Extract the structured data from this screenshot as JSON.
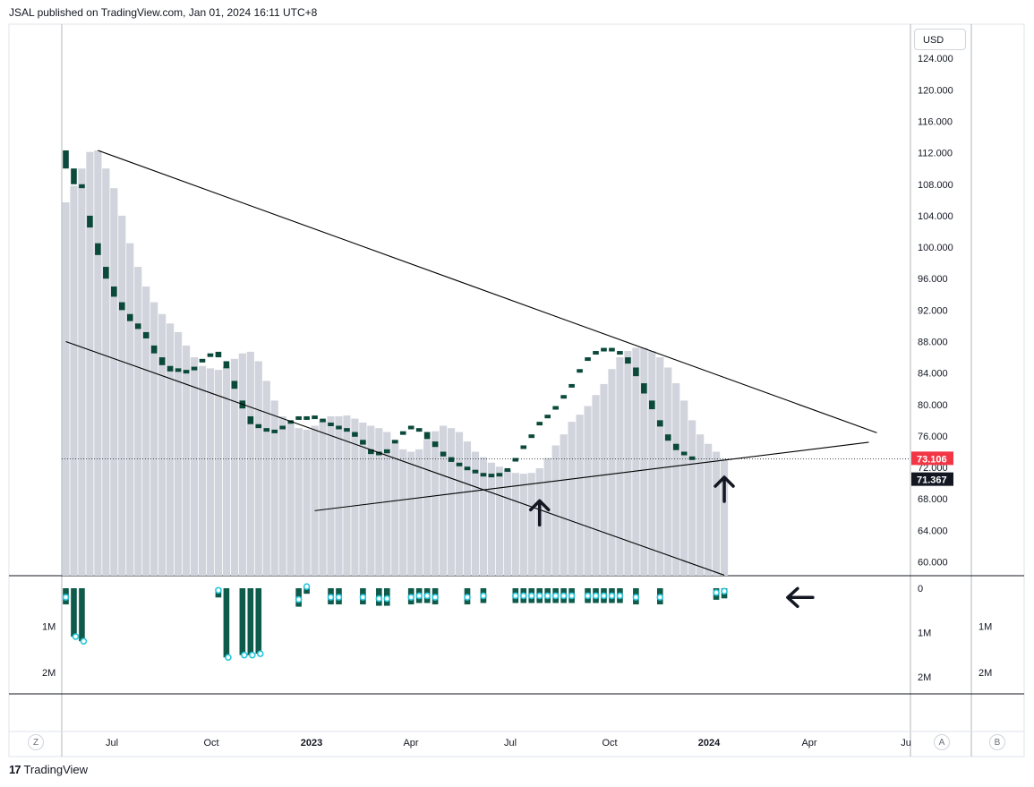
{
  "header": {
    "publish_line": "JSAL published on TradingView.com, Jan 01, 2024 16:11 UTC+8"
  },
  "currency": "USD",
  "footer": {
    "logo": "17",
    "brand": "TradingView"
  },
  "buttons": {
    "left": "Z",
    "scale_a": "A",
    "scale_b": "B"
  },
  "chart_data": {
    "type": "bar",
    "price_axis": {
      "ticks": [
        "124.000",
        "120.000",
        "116.000",
        "112.000",
        "108.000",
        "104.000",
        "100.000",
        "96.000",
        "92.000",
        "88.000",
        "84.000",
        "80.000",
        "76.000",
        "72.000",
        "68.000",
        "64.000",
        "60.000"
      ],
      "ylim": [
        58.3,
        126.5
      ]
    },
    "last_price": {
      "value": "73.106",
      "color": "#f23645",
      "y": 73.106
    },
    "line_level": {
      "value": "71.367",
      "color": "#131722",
      "y": 71.367
    },
    "time_axis": [
      "Jul",
      "Oct",
      "2023",
      "Apr",
      "Jul",
      "Oct",
      "2024",
      "Apr",
      "Ju"
    ],
    "time_axis_bold": [
      "2023",
      "2024"
    ],
    "volume_axis_left": [
      "1M",
      "2M"
    ],
    "volume_axis_right": [
      "0",
      "1M",
      "2M"
    ],
    "volume_axis_far_right": [
      "1M",
      "2M"
    ],
    "colors": {
      "area": "#d1d4dc",
      "bar": "#0b4a3a",
      "volume": "#0e5a4b",
      "marker": "#26c6da",
      "trend": "#000000"
    },
    "series": [
      {
        "values": [
          105.7,
          107.8,
          110.0,
          112.1,
          112.3,
          110.0,
          107.5,
          104.0,
          100.5,
          97.5,
          95.0,
          93.0,
          91.5,
          90.3,
          89.2,
          87.5,
          86.0,
          84.9,
          84.6,
          84.4,
          84.8,
          85.8,
          86.5,
          86.7,
          85.5,
          83.0,
          80.5,
          78.5,
          77.5,
          77.0,
          76.8,
          77.3,
          78.0,
          78.5,
          78.5,
          78.6,
          78.2,
          77.7,
          77.3,
          77.0,
          76.5,
          75.5,
          74.3,
          74.0,
          74.3,
          75.5,
          76.6,
          77.3,
          77.0,
          76.5,
          75.3,
          74.0,
          73.3,
          72.6,
          72.1,
          71.7,
          71.3,
          71.2,
          71.3,
          71.9,
          73.2,
          74.8,
          76.2,
          77.8,
          78.7,
          79.8,
          81.2,
          82.6,
          84.5,
          86.0,
          86.8,
          87.2,
          87.2,
          86.8,
          86.0,
          84.7,
          82.7,
          80.5,
          78.0,
          76.2,
          75.0,
          74.0,
          73.1
        ],
        "bar_ranges": [
          [
            112.3,
            110.0
          ],
          [
            110.0,
            108.0
          ],
          [
            108.0,
            107.5
          ],
          [
            104.0,
            102.5
          ],
          [
            100.5,
            99.0
          ],
          [
            97.5,
            96.0
          ],
          [
            95.0,
            93.7
          ],
          [
            93.0,
            92.0
          ],
          [
            91.5,
            90.6
          ],
          [
            90.3,
            89.6
          ],
          [
            89.2,
            88.4
          ],
          [
            87.5,
            86.5
          ],
          [
            86.0,
            85.0
          ],
          [
            84.9,
            84.2
          ],
          [
            84.6,
            84.2
          ],
          [
            84.4,
            84.3
          ],
          [
            84.8,
            84.6
          ],
          [
            85.8,
            85.5
          ],
          [
            86.5,
            86.3
          ],
          [
            86.7,
            86.0
          ],
          [
            85.5,
            84.6
          ],
          [
            83.0,
            82.0
          ],
          [
            80.5,
            79.5
          ],
          [
            78.5,
            77.5
          ],
          [
            77.5,
            77.0
          ],
          [
            77.0,
            76.8
          ],
          [
            76.8,
            76.7
          ],
          [
            77.3,
            77.2
          ],
          [
            78.0,
            77.9
          ],
          [
            78.5,
            78.4
          ],
          [
            78.5,
            78.4
          ],
          [
            78.6,
            78.5
          ],
          [
            78.2,
            78.1
          ],
          [
            77.7,
            77.6
          ],
          [
            77.3,
            77.2
          ],
          [
            77.0,
            76.9
          ],
          [
            76.5,
            75.9
          ],
          [
            75.5,
            74.9
          ],
          [
            74.3,
            73.7
          ],
          [
            74.0,
            73.8
          ],
          [
            74.3,
            73.8
          ],
          [
            75.5,
            75.4
          ],
          [
            76.6,
            76.5
          ],
          [
            77.3,
            77.2
          ],
          [
            77.0,
            76.9
          ],
          [
            76.5,
            75.6
          ],
          [
            75.3,
            74.6
          ],
          [
            74.0,
            73.4
          ],
          [
            73.3,
            72.7
          ],
          [
            72.6,
            72.3
          ],
          [
            72.1,
            71.9
          ],
          [
            71.7,
            71.6
          ],
          [
            71.3,
            71.2
          ],
          [
            71.2,
            71.1
          ],
          [
            71.3,
            71.2
          ],
          [
            71.9,
            71.8
          ],
          [
            73.2,
            73.1
          ],
          [
            74.8,
            74.7
          ],
          [
            76.2,
            76.1
          ],
          [
            77.8,
            77.7
          ],
          [
            78.7,
            78.6
          ],
          [
            79.8,
            79.7
          ],
          [
            81.2,
            81.1
          ],
          [
            82.6,
            82.5
          ],
          [
            84.5,
            84.4
          ],
          [
            86.0,
            85.9
          ],
          [
            86.8,
            86.7
          ],
          [
            87.2,
            87.1
          ],
          [
            87.2,
            87.0
          ],
          [
            86.8,
            86.5
          ],
          [
            86.0,
            85.2
          ],
          [
            84.7,
            83.6
          ],
          [
            82.7,
            81.4
          ],
          [
            80.5,
            79.4
          ],
          [
            78.0,
            77.2
          ],
          [
            76.2,
            75.4
          ],
          [
            75.0,
            74.2
          ],
          [
            74.0,
            73.6
          ],
          [
            73.4,
            73.106
          ]
        ]
      }
    ],
    "volume": [
      {
        "i": 0,
        "v": 0.35,
        "m": true
      },
      {
        "i": 1,
        "v": 1.05,
        "m": true
      },
      {
        "i": 2,
        "v": 1.15,
        "m": true
      },
      {
        "i": 19,
        "v": 0.2,
        "m": true
      },
      {
        "i": 20,
        "v": 1.5,
        "m": true
      },
      {
        "i": 22,
        "v": 1.45,
        "m": true
      },
      {
        "i": 23,
        "v": 1.45,
        "m": true
      },
      {
        "i": 24,
        "v": 1.42,
        "m": true
      },
      {
        "i": 29,
        "v": 0.4,
        "m": true
      },
      {
        "i": 30,
        "v": 0.12,
        "m": true
      },
      {
        "i": 33,
        "v": 0.35,
        "m": true
      },
      {
        "i": 34,
        "v": 0.35,
        "m": true
      },
      {
        "i": 37,
        "v": 0.35,
        "m": true
      },
      {
        "i": 39,
        "v": 0.38,
        "m": true
      },
      {
        "i": 40,
        "v": 0.38,
        "m": true
      },
      {
        "i": 43,
        "v": 0.35,
        "m": true
      },
      {
        "i": 44,
        "v": 0.32,
        "m": true
      },
      {
        "i": 45,
        "v": 0.32,
        "m": true
      },
      {
        "i": 46,
        "v": 0.35,
        "m": true
      },
      {
        "i": 50,
        "v": 0.35,
        "m": true
      },
      {
        "i": 52,
        "v": 0.32,
        "m": true
      },
      {
        "i": 56,
        "v": 0.32,
        "m": true
      },
      {
        "i": 57,
        "v": 0.32,
        "m": true
      },
      {
        "i": 58,
        "v": 0.32,
        "m": true
      },
      {
        "i": 59,
        "v": 0.32,
        "m": true
      },
      {
        "i": 60,
        "v": 0.32,
        "m": true
      },
      {
        "i": 61,
        "v": 0.32,
        "m": true
      },
      {
        "i": 62,
        "v": 0.32,
        "m": true
      },
      {
        "i": 63,
        "v": 0.32,
        "m": true
      },
      {
        "i": 65,
        "v": 0.32,
        "m": true
      },
      {
        "i": 66,
        "v": 0.32,
        "m": true
      },
      {
        "i": 67,
        "v": 0.32,
        "m": true
      },
      {
        "i": 68,
        "v": 0.32,
        "m": true
      },
      {
        "i": 69,
        "v": 0.32,
        "m": true
      },
      {
        "i": 71,
        "v": 0.35,
        "m": true
      },
      {
        "i": 74,
        "v": 0.35,
        "m": true
      },
      {
        "i": 81,
        "v": 0.25,
        "m": true
      },
      {
        "i": 82,
        "v": 0.22,
        "m": true
      }
    ],
    "trendlines": [
      {
        "from": [
          "bar",
          4,
          112.3
        ],
        "to": [
          "bar",
          101,
          76.4
        ]
      },
      {
        "from": [
          "bar",
          0,
          88.0
        ],
        "to": [
          "bar",
          82,
          58.3
        ]
      },
      {
        "from": [
          "bar",
          31,
          66.5
        ],
        "to": [
          "bar",
          100,
          75.2
        ]
      }
    ],
    "annotations": [
      {
        "type": "up-arrow",
        "bar": 59,
        "y": 66.5
      },
      {
        "type": "up-arrow",
        "bar": 82,
        "y": 69.5
      },
      {
        "type": "left-arrow",
        "bar": 87,
        "volume": 0.2
      }
    ]
  }
}
